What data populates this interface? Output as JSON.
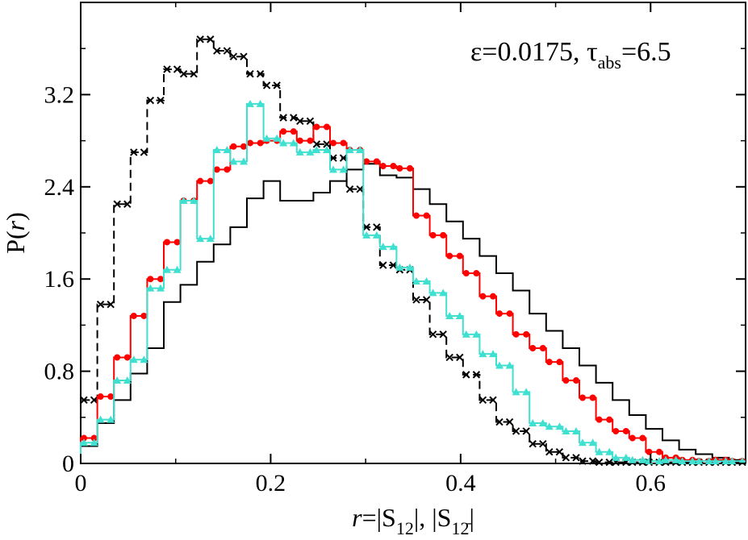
{
  "chart_data": {
    "type": "step-histogram",
    "xlim": [
      0,
      0.7
    ],
    "ylim": [
      0,
      4.0
    ],
    "x_ticks": [
      0,
      0.2,
      0.4,
      0.6
    ],
    "x_tick_labels": [
      "0",
      "0.2",
      "0.4",
      "0.6"
    ],
    "y_ticks": [
      0,
      0.8,
      1.6,
      2.4,
      3.2
    ],
    "y_tick_labels": [
      "0",
      "0.8",
      "1.6",
      "2.4",
      "3.2"
    ],
    "bin_width": 0.0175,
    "bin_start": 0,
    "xlabel": {
      "prefix": "r",
      "main": "=|S",
      "sub1": "12",
      "sep": "|, |S",
      "sub2": "12̄",
      "suffix": "|"
    },
    "ylabel": {
      "text_before": "P(",
      "var": "r",
      "text_after": ")"
    },
    "annotation": {
      "eps": "ε=0.0175, ",
      "tau": "τ",
      "tau_sub": "abs",
      "tau_val": "=6.5"
    },
    "grid": false,
    "legend": "none",
    "series": [
      {
        "style": "solid",
        "color": "#000000",
        "values": [
          0.15,
          0.35,
          0.55,
          0.78,
          1.0,
          1.4,
          1.55,
          1.75,
          1.9,
          2.05,
          2.3,
          2.45,
          2.28,
          2.28,
          2.35,
          2.45,
          2.55,
          2.6,
          2.5,
          2.48,
          2.38,
          2.25,
          2.1,
          1.95,
          1.8,
          1.65,
          1.5,
          1.3,
          1.15,
          1.0,
          0.85,
          0.7,
          0.55,
          0.42,
          0.3,
          0.2,
          0.12,
          0.08,
          0.05,
          0.03
        ]
      },
      {
        "style": "dashed-x",
        "color": "#000000",
        "marker": "x",
        "values": [
          0.55,
          1.38,
          2.25,
          2.7,
          3.15,
          3.42,
          3.38,
          3.68,
          3.58,
          3.53,
          3.38,
          3.28,
          3.0,
          2.97,
          2.77,
          2.65,
          2.38,
          2.05,
          1.72,
          1.68,
          1.42,
          1.12,
          0.92,
          0.77,
          0.55,
          0.36,
          0.28,
          0.17,
          0.1,
          0.05,
          0.02,
          0.01,
          0.01,
          0.01,
          0.01,
          0.01,
          0.01,
          0.01,
          0.01,
          0.01
        ]
      },
      {
        "style": "solid-circle",
        "color": "#ff0000",
        "marker": "circle",
        "values": [
          0.22,
          0.58,
          0.92,
          1.28,
          1.6,
          1.92,
          2.28,
          2.45,
          2.55,
          2.75,
          2.78,
          2.8,
          2.88,
          2.8,
          2.92,
          2.78,
          2.72,
          2.62,
          2.58,
          2.56,
          2.15,
          1.98,
          1.8,
          1.65,
          1.45,
          1.3,
          1.12,
          1.0,
          0.88,
          0.72,
          0.57,
          0.38,
          0.28,
          0.22,
          0.1,
          0.05,
          0.03,
          0.02,
          0.03,
          0.02
        ]
      },
      {
        "style": "solid-triangle",
        "color": "#40e0d0",
        "marker": "triangle",
        "values": [
          0.18,
          0.38,
          0.72,
          0.9,
          1.52,
          1.68,
          2.28,
          1.95,
          2.72,
          2.62,
          3.12,
          2.82,
          2.78,
          2.7,
          2.72,
          2.55,
          2.72,
          1.98,
          1.88,
          1.7,
          1.58,
          1.48,
          1.28,
          1.12,
          0.95,
          0.85,
          0.62,
          0.35,
          0.32,
          0.28,
          0.18,
          0.1,
          0.05,
          0.03,
          0.02,
          0.03,
          0.02,
          0.02,
          0.02,
          0.02
        ]
      }
    ]
  }
}
